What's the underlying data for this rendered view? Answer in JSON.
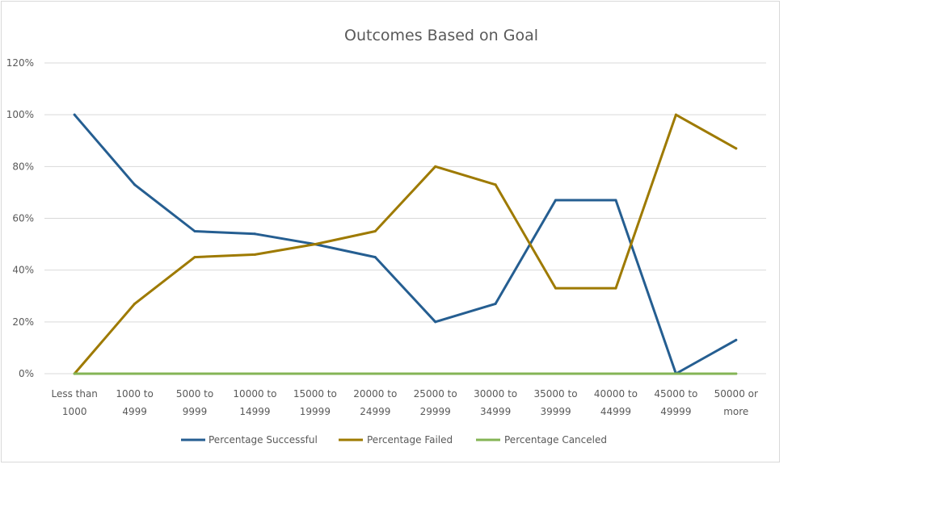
{
  "chart_data": {
    "type": "line",
    "title": "Outcomes Based on Goal",
    "xlabel": "",
    "ylabel": "",
    "categories": [
      [
        "Less than",
        "1000"
      ],
      [
        "1000 to",
        "4999"
      ],
      [
        "5000 to",
        "9999"
      ],
      [
        "10000 to",
        "14999"
      ],
      [
        "15000 to",
        "19999"
      ],
      [
        "20000 to",
        "24999"
      ],
      [
        "25000 to",
        "29999"
      ],
      [
        "30000 to",
        "34999"
      ],
      [
        "35000 to",
        "39999"
      ],
      [
        "40000 to",
        "44999"
      ],
      [
        "45000 to",
        "49999"
      ],
      [
        "50000 or",
        "more"
      ]
    ],
    "ylim": [
      0,
      120
    ],
    "yticks": [
      0,
      20,
      40,
      60,
      80,
      100,
      120
    ],
    "ytick_labels": [
      "0%",
      "20%",
      "40%",
      "60%",
      "80%",
      "100%",
      "120%"
    ],
    "grid": true,
    "legend_position": "bottom",
    "series": [
      {
        "name": "Percentage Successful",
        "color": "#255e91",
        "values": [
          100,
          73,
          55,
          54,
          50,
          45,
          20,
          27,
          67,
          67,
          0,
          13
        ]
      },
      {
        "name": "Percentage Failed",
        "color": "#9e7a00",
        "values": [
          0,
          27,
          45,
          46,
          50,
          55,
          80,
          73,
          33,
          33,
          100,
          87
        ]
      },
      {
        "name": "Percentage Canceled",
        "color": "#84b455",
        "values": [
          0,
          0,
          0,
          0,
          0,
          0,
          0,
          0,
          0,
          0,
          0,
          0
        ]
      }
    ]
  }
}
